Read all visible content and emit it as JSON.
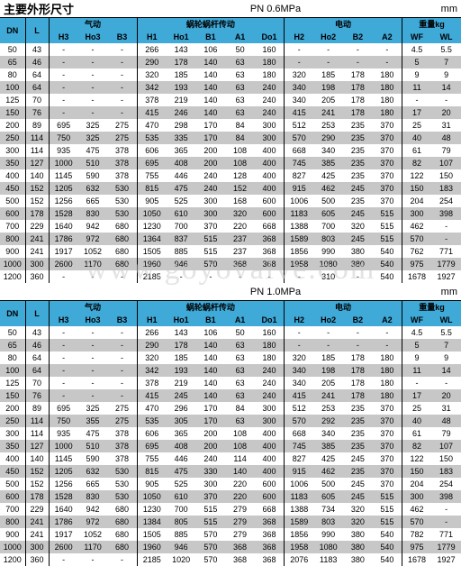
{
  "title": "主要外形尺寸",
  "unit": "mm",
  "watermark": "www.goyovalve.com",
  "colors": {
    "header": "#3fa9d8",
    "rowA": "#ffffff",
    "rowB": "#c7c7c7"
  },
  "groups": {
    "g1": "气动",
    "g2": "蜗轮蜗杆传动",
    "g3": "电动",
    "g4": "重量kg"
  },
  "cols": [
    "DN",
    "L",
    "H3",
    "Ho3",
    "B3",
    "H1",
    "Ho1",
    "B1",
    "A1",
    "Do1",
    "H2",
    "Ho2",
    "B2",
    "A2",
    "WF",
    "WL"
  ],
  "tables": [
    {
      "pressure": "PN 0.6MPa",
      "rows": [
        [
          "50",
          "43",
          "-",
          "-",
          "-",
          "266",
          "143",
          "106",
          "50",
          "160",
          "-",
          "-",
          "-",
          "-",
          "4.5",
          "5.5"
        ],
        [
          "65",
          "46",
          "-",
          "-",
          "-",
          "290",
          "178",
          "140",
          "63",
          "180",
          "-",
          "-",
          "-",
          "-",
          "5",
          "7"
        ],
        [
          "80",
          "64",
          "-",
          "-",
          "-",
          "320",
          "185",
          "140",
          "63",
          "180",
          "320",
          "185",
          "178",
          "180",
          "9",
          "9"
        ],
        [
          "100",
          "64",
          "-",
          "-",
          "-",
          "342",
          "193",
          "140",
          "63",
          "240",
          "340",
          "198",
          "178",
          "180",
          "11",
          "14"
        ],
        [
          "125",
          "70",
          "-",
          "-",
          "-",
          "378",
          "219",
          "140",
          "63",
          "240",
          "340",
          "205",
          "178",
          "180",
          "-",
          "-"
        ],
        [
          "150",
          "76",
          "-",
          "-",
          "-",
          "415",
          "246",
          "140",
          "63",
          "240",
          "415",
          "241",
          "178",
          "180",
          "17",
          "20"
        ],
        [
          "200",
          "89",
          "695",
          "325",
          "275",
          "470",
          "298",
          "170",
          "84",
          "300",
          "512",
          "253",
          "235",
          "370",
          "25",
          "31"
        ],
        [
          "250",
          "114",
          "750",
          "325",
          "275",
          "535",
          "335",
          "170",
          "84",
          "300",
          "570",
          "290",
          "235",
          "370",
          "40",
          "48"
        ],
        [
          "300",
          "114",
          "935",
          "475",
          "378",
          "606",
          "365",
          "200",
          "108",
          "400",
          "668",
          "340",
          "235",
          "370",
          "61",
          "79"
        ],
        [
          "350",
          "127",
          "1000",
          "510",
          "378",
          "695",
          "408",
          "200",
          "108",
          "400",
          "745",
          "385",
          "235",
          "370",
          "82",
          "107"
        ],
        [
          "400",
          "140",
          "1145",
          "590",
          "378",
          "755",
          "446",
          "240",
          "128",
          "400",
          "827",
          "425",
          "235",
          "370",
          "122",
          "150"
        ],
        [
          "450",
          "152",
          "1205",
          "632",
          "530",
          "815",
          "475",
          "240",
          "152",
          "400",
          "915",
          "462",
          "245",
          "370",
          "150",
          "183"
        ],
        [
          "500",
          "152",
          "1256",
          "665",
          "530",
          "905",
          "525",
          "300",
          "168",
          "600",
          "1006",
          "500",
          "235",
          "370",
          "204",
          "254"
        ],
        [
          "600",
          "178",
          "1528",
          "830",
          "530",
          "1050",
          "610",
          "300",
          "320",
          "600",
          "1183",
          "605",
          "245",
          "515",
          "300",
          "398"
        ],
        [
          "700",
          "229",
          "1640",
          "942",
          "680",
          "1230",
          "700",
          "370",
          "220",
          "668",
          "1388",
          "700",
          "320",
          "515",
          "462",
          "-"
        ],
        [
          "800",
          "241",
          "1786",
          "972",
          "680",
          "1364",
          "837",
          "515",
          "237",
          "368",
          "1589",
          "803",
          "245",
          "515",
          "570",
          "-"
        ],
        [
          "900",
          "241",
          "1917",
          "1052",
          "680",
          "1505",
          "885",
          "515",
          "237",
          "368",
          "1856",
          "990",
          "380",
          "540",
          "762",
          "771"
        ],
        [
          "1000",
          "300",
          "2600",
          "1170",
          "680",
          "1960",
          "946",
          "570",
          "368",
          "368",
          "1958",
          "1080",
          "380",
          "540",
          "975",
          "1779"
        ],
        [
          "1200",
          "360",
          "-",
          "-",
          "-",
          "2185",
          "-",
          "-",
          "-",
          "-",
          "-",
          "310",
          "-",
          "540",
          "1678",
          "1927"
        ]
      ]
    },
    {
      "pressure": "PN 1.0MPa",
      "rows": [
        [
          "50",
          "43",
          "-",
          "-",
          "-",
          "266",
          "143",
          "106",
          "50",
          "160",
          "-",
          "-",
          "-",
          "-",
          "4.5",
          "5.5"
        ],
        [
          "65",
          "46",
          "-",
          "-",
          "-",
          "290",
          "178",
          "140",
          "63",
          "180",
          "-",
          "-",
          "-",
          "-",
          "5",
          "7"
        ],
        [
          "80",
          "64",
          "-",
          "-",
          "-",
          "320",
          "185",
          "140",
          "63",
          "180",
          "320",
          "185",
          "178",
          "180",
          "9",
          "9"
        ],
        [
          "100",
          "64",
          "-",
          "-",
          "-",
          "342",
          "193",
          "140",
          "63",
          "240",
          "340",
          "198",
          "178",
          "180",
          "11",
          "14"
        ],
        [
          "125",
          "70",
          "-",
          "-",
          "-",
          "378",
          "219",
          "140",
          "63",
          "240",
          "340",
          "205",
          "178",
          "180",
          "-",
          "-"
        ],
        [
          "150",
          "76",
          "-",
          "-",
          "-",
          "415",
          "245",
          "140",
          "63",
          "240",
          "415",
          "241",
          "178",
          "180",
          "17",
          "20"
        ],
        [
          "200",
          "89",
          "695",
          "325",
          "275",
          "470",
          "296",
          "170",
          "84",
          "300",
          "512",
          "253",
          "235",
          "370",
          "25",
          "31"
        ],
        [
          "250",
          "114",
          "750",
          "355",
          "275",
          "535",
          "305",
          "170",
          "63",
          "300",
          "570",
          "292",
          "235",
          "370",
          "40",
          "48"
        ],
        [
          "300",
          "114",
          "935",
          "475",
          "378",
          "606",
          "365",
          "200",
          "108",
          "400",
          "668",
          "340",
          "235",
          "370",
          "61",
          "79"
        ],
        [
          "350",
          "127",
          "1000",
          "510",
          "378",
          "695",
          "408",
          "200",
          "108",
          "400",
          "745",
          "385",
          "235",
          "370",
          "82",
          "107"
        ],
        [
          "400",
          "140",
          "1145",
          "590",
          "378",
          "755",
          "446",
          "240",
          "114",
          "400",
          "827",
          "425",
          "245",
          "370",
          "122",
          "150"
        ],
        [
          "450",
          "152",
          "1205",
          "632",
          "530",
          "815",
          "475",
          "330",
          "140",
          "400",
          "915",
          "462",
          "235",
          "370",
          "150",
          "183"
        ],
        [
          "500",
          "152",
          "1256",
          "665",
          "530",
          "905",
          "525",
          "300",
          "220",
          "600",
          "1006",
          "500",
          "245",
          "370",
          "204",
          "254"
        ],
        [
          "600",
          "178",
          "1528",
          "830",
          "530",
          "1050",
          "610",
          "370",
          "220",
          "600",
          "1183",
          "605",
          "245",
          "515",
          "300",
          "398"
        ],
        [
          "700",
          "229",
          "1640",
          "942",
          "680",
          "1230",
          "700",
          "515",
          "279",
          "668",
          "1388",
          "734",
          "320",
          "515",
          "462",
          "-"
        ],
        [
          "800",
          "241",
          "1786",
          "972",
          "680",
          "1384",
          "805",
          "515",
          "279",
          "368",
          "1589",
          "803",
          "320",
          "515",
          "570",
          "-"
        ],
        [
          "900",
          "241",
          "1917",
          "1052",
          "680",
          "1505",
          "885",
          "570",
          "279",
          "368",
          "1856",
          "990",
          "380",
          "540",
          "782",
          "771"
        ],
        [
          "1000",
          "300",
          "2600",
          "1170",
          "680",
          "1960",
          "946",
          "570",
          "368",
          "368",
          "1958",
          "1080",
          "380",
          "540",
          "975",
          "1779"
        ],
        [
          "1200",
          "360",
          "-",
          "-",
          "-",
          "2185",
          "1020",
          "570",
          "368",
          "368",
          "2076",
          "1183",
          "380",
          "540",
          "1678",
          "1927"
        ]
      ]
    }
  ]
}
